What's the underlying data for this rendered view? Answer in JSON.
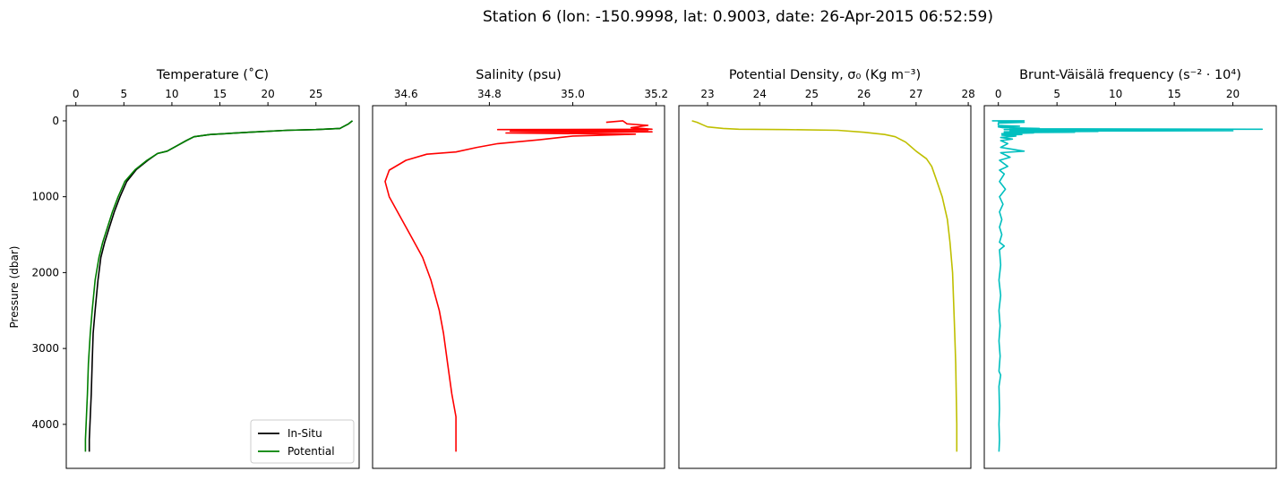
{
  "figure": {
    "suptitle": "Station 6 (lon: -150.9998, lat: 0.9003, date: 26-Apr-2015 06:52:59)"
  },
  "chart_data": [
    {
      "type": "line",
      "title": "Temperature (˚C)",
      "xlabel": "",
      "ylabel": "Pressure (dbar)",
      "xlim": [
        -1,
        29.5
      ],
      "ylim": [
        4580,
        -200
      ],
      "xticks": [
        0,
        5,
        10,
        15,
        20,
        25
      ],
      "yticks": [
        0,
        1000,
        2000,
        3000,
        4000
      ],
      "x_axis_position": "top",
      "legend": {
        "placement": "lower-right",
        "entries": [
          "In-Situ",
          "Potential"
        ]
      },
      "series": [
        {
          "name": "In-Situ",
          "color": "#000000",
          "points": [
            [
              28.8,
              0
            ],
            [
              28.4,
              40
            ],
            [
              27.5,
              100
            ],
            [
              25.0,
              115
            ],
            [
              22.0,
              125
            ],
            [
              18.0,
              150
            ],
            [
              14.0,
              180
            ],
            [
              12.3,
              210
            ],
            [
              11.5,
              260
            ],
            [
              10.5,
              330
            ],
            [
              9.5,
              400
            ],
            [
              8.5,
              430
            ],
            [
              7.5,
              520
            ],
            [
              6.3,
              640
            ],
            [
              5.3,
              800
            ],
            [
              4.6,
              1000
            ],
            [
              4.0,
              1200
            ],
            [
              3.5,
              1400
            ],
            [
              3.0,
              1600
            ],
            [
              2.6,
              1800
            ],
            [
              2.3,
              2100
            ],
            [
              2.0,
              2500
            ],
            [
              1.8,
              2800
            ],
            [
              1.7,
              3200
            ],
            [
              1.6,
              3600
            ],
            [
              1.5,
              3900
            ],
            [
              1.4,
              4200
            ],
            [
              1.4,
              4360
            ]
          ]
        },
        {
          "name": "Potential",
          "color": "#008000",
          "points": [
            [
              28.8,
              0
            ],
            [
              28.4,
              40
            ],
            [
              27.5,
              100
            ],
            [
              25.0,
              115
            ],
            [
              22.0,
              125
            ],
            [
              18.0,
              150
            ],
            [
              14.0,
              180
            ],
            [
              12.3,
              210
            ],
            [
              11.5,
              260
            ],
            [
              10.5,
              330
            ],
            [
              9.5,
              400
            ],
            [
              8.5,
              430
            ],
            [
              7.4,
              520
            ],
            [
              6.2,
              640
            ],
            [
              5.1,
              800
            ],
            [
              4.4,
              1000
            ],
            [
              3.8,
              1200
            ],
            [
              3.3,
              1400
            ],
            [
              2.8,
              1600
            ],
            [
              2.4,
              1800
            ],
            [
              2.0,
              2100
            ],
            [
              1.7,
              2500
            ],
            [
              1.5,
              2800
            ],
            [
              1.3,
              3200
            ],
            [
              1.2,
              3600
            ],
            [
              1.1,
              3900
            ],
            [
              1.0,
              4200
            ],
            [
              1.0,
              4360
            ]
          ]
        }
      ]
    },
    {
      "type": "line",
      "title": "Salinity (psu)",
      "xlabel": "",
      "ylabel": "",
      "xlim": [
        34.52,
        35.22
      ],
      "ylim": [
        4580,
        -200
      ],
      "xticks": [
        34.6,
        34.8,
        35.0,
        35.2
      ],
      "xticklabels": [
        "34.6",
        "34.8",
        "35.0",
        "35.2"
      ],
      "x_axis_position": "top",
      "series": [
        {
          "name": "",
          "color": "#ff0000",
          "points": [
            [
              35.08,
              20
            ],
            [
              35.12,
              0
            ],
            [
              35.13,
              40
            ],
            [
              35.18,
              60
            ],
            [
              35.14,
              90
            ],
            [
              35.19,
              110
            ],
            [
              34.82,
              115
            ],
            [
              35.18,
              125
            ],
            [
              34.85,
              135
            ],
            [
              35.19,
              145
            ],
            [
              34.84,
              160
            ],
            [
              35.15,
              175
            ],
            [
              35.1,
              185
            ],
            [
              35.0,
              200
            ],
            [
              34.92,
              250
            ],
            [
              34.82,
              300
            ],
            [
              34.77,
              350
            ],
            [
              34.72,
              410
            ],
            [
              34.65,
              440
            ],
            [
              34.6,
              520
            ],
            [
              34.56,
              650
            ],
            [
              34.55,
              800
            ],
            [
              34.56,
              1000
            ],
            [
              34.58,
              1200
            ],
            [
              34.6,
              1400
            ],
            [
              34.62,
              1600
            ],
            [
              34.64,
              1800
            ],
            [
              34.66,
              2100
            ],
            [
              34.68,
              2500
            ],
            [
              34.69,
              2800
            ],
            [
              34.7,
              3200
            ],
            [
              34.71,
              3600
            ],
            [
              34.72,
              3900
            ],
            [
              34.72,
              4200
            ],
            [
              34.72,
              4360
            ]
          ]
        }
      ]
    },
    {
      "type": "line",
      "title": "Potential Density, σ₀ (Kg m⁻³)",
      "xlabel": "",
      "ylabel": "",
      "xlim": [
        22.45,
        28.05
      ],
      "ylim": [
        4580,
        -200
      ],
      "xticks": [
        23,
        24,
        25,
        26,
        27,
        28
      ],
      "x_axis_position": "top",
      "series": [
        {
          "name": "",
          "color": "#bfbf00",
          "points": [
            [
              22.7,
              0
            ],
            [
              22.8,
              20
            ],
            [
              22.9,
              50
            ],
            [
              23.0,
              80
            ],
            [
              23.3,
              100
            ],
            [
              23.6,
              110
            ],
            [
              24.5,
              115
            ],
            [
              25.5,
              125
            ],
            [
              26.0,
              150
            ],
            [
              26.4,
              180
            ],
            [
              26.6,
              210
            ],
            [
              26.8,
              280
            ],
            [
              27.0,
              400
            ],
            [
              27.2,
              500
            ],
            [
              27.3,
              600
            ],
            [
              27.4,
              800
            ],
            [
              27.5,
              1000
            ],
            [
              27.6,
              1300
            ],
            [
              27.65,
              1600
            ],
            [
              27.7,
              2000
            ],
            [
              27.72,
              2400
            ],
            [
              27.74,
              2800
            ],
            [
              27.76,
              3200
            ],
            [
              27.77,
              3600
            ],
            [
              27.78,
              4000
            ],
            [
              27.78,
              4360
            ]
          ]
        }
      ]
    },
    {
      "type": "line",
      "title": "Brunt-Väisälä frequency (s⁻² · 10⁴)",
      "xlabel": "",
      "ylabel": "",
      "xlim": [
        -1.2,
        23.7
      ],
      "ylim": [
        4580,
        -200
      ],
      "xticks": [
        0,
        5,
        10,
        15,
        20
      ],
      "x_axis_position": "top",
      "series": [
        {
          "name": "",
          "color": "#00bfbf",
          "points": [
            [
              0,
              0
            ],
            [
              -0.5,
              0
            ],
            [
              2.2,
              0
            ],
            [
              0,
              10
            ],
            [
              2.2,
              20
            ],
            [
              0,
              30
            ],
            [
              0,
              60
            ],
            [
              1.8,
              70
            ],
            [
              0,
              80
            ],
            [
              0.4,
              90
            ],
            [
              3.5,
              100
            ],
            [
              1.0,
              105
            ],
            [
              22.5,
              110
            ],
            [
              0.5,
              115
            ],
            [
              19.5,
              120
            ],
            [
              1.0,
              125
            ],
            [
              20.0,
              130
            ],
            [
              1.0,
              135
            ],
            [
              8.5,
              140
            ],
            [
              0.5,
              145
            ],
            [
              6.5,
              150
            ],
            [
              0.5,
              155
            ],
            [
              3.0,
              160
            ],
            [
              0.3,
              170
            ],
            [
              2.0,
              180
            ],
            [
              0.3,
              190
            ],
            [
              1.5,
              200
            ],
            [
              0.2,
              220
            ],
            [
              1.2,
              240
            ],
            [
              0.2,
              260
            ],
            [
              0.8,
              300
            ],
            [
              0.2,
              350
            ],
            [
              2.2,
              400
            ],
            [
              0.2,
              420
            ],
            [
              1.0,
              480
            ],
            [
              0.1,
              520
            ],
            [
              0.8,
              600
            ],
            [
              0.1,
              650
            ],
            [
              0.5,
              700
            ],
            [
              0.1,
              800
            ],
            [
              0.6,
              900
            ],
            [
              0.1,
              1000
            ],
            [
              0.4,
              1100
            ],
            [
              0.1,
              1200
            ],
            [
              0.3,
              1300
            ],
            [
              0.1,
              1400
            ],
            [
              0.3,
              1500
            ],
            [
              0.1,
              1600
            ],
            [
              0.5,
              1650
            ],
            [
              0.1,
              1700
            ],
            [
              0.2,
              1900
            ],
            [
              0.05,
              2100
            ],
            [
              0.2,
              2300
            ],
            [
              0.05,
              2500
            ],
            [
              0.15,
              2700
            ],
            [
              0.05,
              2900
            ],
            [
              0.15,
              3100
            ],
            [
              0.05,
              3300
            ],
            [
              0.2,
              3350
            ],
            [
              0.05,
              3500
            ],
            [
              0.1,
              3800
            ],
            [
              0.05,
              4000
            ],
            [
              0.1,
              4200
            ],
            [
              0.05,
              4360
            ]
          ]
        }
      ]
    }
  ]
}
